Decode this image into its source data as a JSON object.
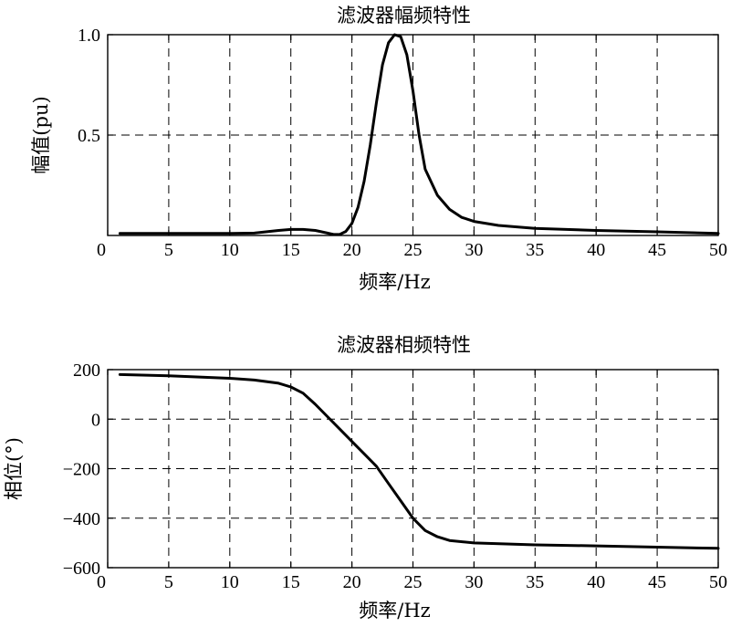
{
  "chart_data": [
    {
      "type": "line",
      "title": "滤波器幅频特性",
      "xlabel": "频率/Hz",
      "ylabel": "幅值(pu)",
      "xlim": [
        0,
        50
      ],
      "ylim": [
        0,
        1.0
      ],
      "xticks": [
        0,
        5,
        10,
        15,
        20,
        25,
        30,
        35,
        40,
        45,
        50
      ],
      "xtick_labels": [
        "0",
        "5",
        "10",
        "15",
        "20",
        "25",
        "30",
        "35",
        "40",
        "45",
        "50"
      ],
      "yticks": [
        0.5,
        1.0
      ],
      "ytick_labels": [
        "0.5",
        "1.0"
      ],
      "grid": true,
      "series": [
        {
          "x": [
            1,
            5,
            10,
            12,
            14,
            15,
            16,
            17,
            18,
            18.5,
            19,
            19.5,
            20,
            20.5,
            21,
            21.5,
            22,
            22.5,
            23,
            23.5,
            24,
            24.5,
            25,
            25.5,
            26,
            27,
            28,
            29,
            30,
            32,
            35,
            40,
            45,
            50
          ],
          "y": [
            0.01,
            0.01,
            0.01,
            0.012,
            0.025,
            0.03,
            0.03,
            0.025,
            0.012,
            0.005,
            0.005,
            0.02,
            0.06,
            0.14,
            0.27,
            0.45,
            0.66,
            0.85,
            0.96,
            1.0,
            0.99,
            0.9,
            0.72,
            0.5,
            0.33,
            0.2,
            0.13,
            0.09,
            0.07,
            0.05,
            0.035,
            0.025,
            0.018,
            0.01
          ]
        }
      ]
    },
    {
      "type": "line",
      "title": "滤波器相频特性",
      "xlabel": "频率/Hz",
      "ylabel": "相位(°)",
      "xlim": [
        0,
        50
      ],
      "ylim": [
        -600,
        200
      ],
      "xticks": [
        0,
        5,
        10,
        15,
        20,
        25,
        30,
        35,
        40,
        45,
        50
      ],
      "xtick_labels": [
        "0",
        "5",
        "10",
        "15",
        "20",
        "25",
        "30",
        "35",
        "40",
        "45",
        "50"
      ],
      "yticks": [
        -600,
        -400,
        -200,
        0,
        200
      ],
      "ytick_labels": [
        "−600",
        "−400",
        "−200",
        "0",
        "200"
      ],
      "grid": true,
      "series": [
        {
          "x": [
            1,
            5,
            10,
            12,
            14,
            15,
            16,
            17,
            18,
            19,
            20,
            21,
            22,
            23,
            24,
            25,
            26,
            27,
            28,
            30,
            35,
            40,
            45,
            50
          ],
          "y": [
            180,
            175,
            165,
            158,
            145,
            130,
            105,
            60,
            10,
            -40,
            -90,
            -140,
            -190,
            -260,
            -330,
            -400,
            -450,
            -475,
            -490,
            -500,
            -508,
            -512,
            -517,
            -522
          ]
        }
      ]
    }
  ]
}
